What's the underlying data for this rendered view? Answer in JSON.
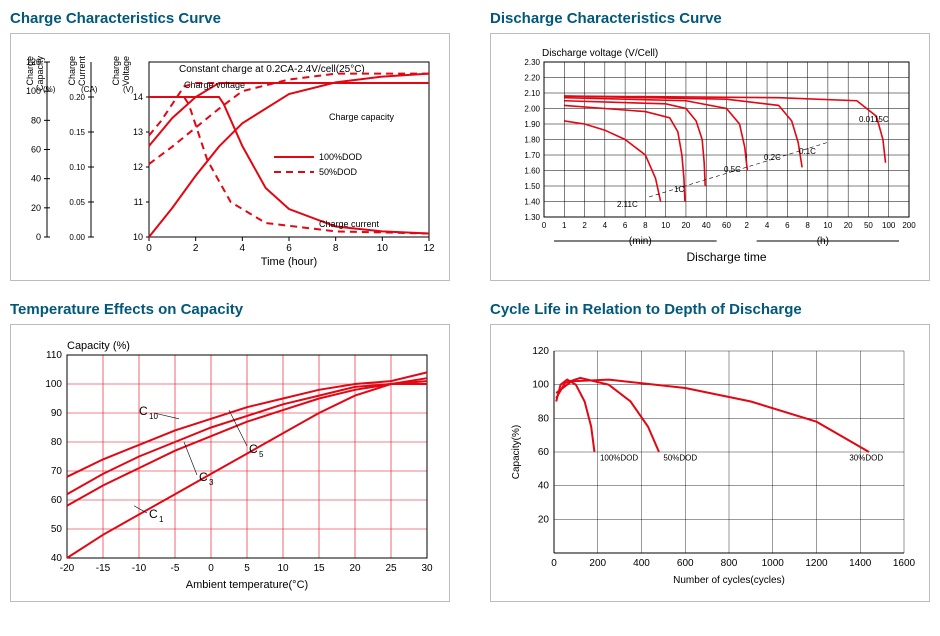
{
  "colors": {
    "title": "#00587a",
    "border": "#bcbcbc",
    "axis": "#000000",
    "grid_red": "#e30613",
    "grid_black": "#000000",
    "series_red": "#e30613",
    "text": "#000000"
  },
  "chart1": {
    "title": "Charge Characteristics Curve",
    "subtitle": "Constant charge at 0.2CA-2.4V/cell(25°C)",
    "x_label": "Time (hour)",
    "x_ticks": [
      0,
      2,
      4,
      6,
      8,
      10,
      12
    ],
    "xlim": [
      0,
      12
    ],
    "y1": {
      "label": "Charge Capacity (%)",
      "ticks": [
        0,
        20,
        40,
        60,
        80,
        100,
        120
      ],
      "lim": [
        0,
        120
      ]
    },
    "y2": {
      "label": "Charge Current (CA)",
      "ticks": [
        0,
        0.05,
        0.1,
        0.15,
        0.2
      ],
      "lim": [
        0,
        0.25
      ]
    },
    "y3": {
      "label": "Charge Voltage (V)",
      "ticks": [
        10,
        11,
        12,
        13,
        14
      ],
      "lim": [
        10,
        15
      ]
    },
    "legend": [
      {
        "label": "100%DOD",
        "dash": "none"
      },
      {
        "label": "50%DOD",
        "dash": "8 5"
      }
    ],
    "annotations": [
      "Charge voltage",
      "Charge capacity",
      "Charge current"
    ],
    "curves": {
      "voltage_100": [
        [
          0,
          12.6
        ],
        [
          0.5,
          13.0
        ],
        [
          1,
          13.4
        ],
        [
          2,
          14.0
        ],
        [
          3,
          14.4
        ],
        [
          4,
          14.4
        ],
        [
          12,
          14.4
        ]
      ],
      "voltage_50": [
        [
          0,
          12.9
        ],
        [
          0.5,
          13.3
        ],
        [
          1,
          13.8
        ],
        [
          1.5,
          14.3
        ],
        [
          2,
          14.4
        ],
        [
          12,
          14.4
        ]
      ],
      "capacity_100": [
        [
          0,
          0
        ],
        [
          1,
          20
        ],
        [
          2,
          42
        ],
        [
          3,
          62
        ],
        [
          4,
          78
        ],
        [
          6,
          98
        ],
        [
          8,
          106
        ],
        [
          10,
          110
        ],
        [
          12,
          112
        ]
      ],
      "capacity_50": [
        [
          0,
          50
        ],
        [
          1,
          62
        ],
        [
          2,
          75
        ],
        [
          3,
          88
        ],
        [
          4,
          100
        ],
        [
          6,
          108
        ],
        [
          8,
          112
        ],
        [
          12,
          112
        ]
      ],
      "current_100": [
        [
          0,
          0.2
        ],
        [
          2,
          0.2
        ],
        [
          3,
          0.2
        ],
        [
          3.2,
          0.19
        ],
        [
          4,
          0.13
        ],
        [
          5,
          0.07
        ],
        [
          6,
          0.04
        ],
        [
          8,
          0.015
        ],
        [
          10,
          0.008
        ],
        [
          12,
          0.005
        ]
      ],
      "current_50": [
        [
          0,
          0.2
        ],
        [
          1,
          0.2
        ],
        [
          1.5,
          0.2
        ],
        [
          1.7,
          0.19
        ],
        [
          2.5,
          0.11
        ],
        [
          3.5,
          0.05
        ],
        [
          5,
          0.02
        ],
        [
          8,
          0.008
        ],
        [
          12,
          0.005
        ]
      ]
    }
  },
  "chart2": {
    "title": "Discharge Characteristics Curve",
    "y_label": "Discharge voltage (V/Cell)",
    "x_label": "Discharge time",
    "x_unit_left": "(min)",
    "x_unit_right": "(h)",
    "y_ticks": [
      1.3,
      1.4,
      1.5,
      1.6,
      1.7,
      1.8,
      1.9,
      2.0,
      2.1,
      2.2,
      2.3
    ],
    "ylim": [
      1.3,
      2.3
    ],
    "x_ticks_min": [
      0,
      1,
      2,
      4,
      6,
      8,
      10,
      20,
      40,
      60
    ],
    "x_ticks_h": [
      2,
      4,
      6,
      8,
      10,
      20,
      50,
      100,
      200
    ],
    "series": [
      {
        "label": "2.11C",
        "data": [
          [
            1,
            1.92
          ],
          [
            2,
            1.9
          ],
          [
            4,
            1.86
          ],
          [
            6,
            1.8
          ],
          [
            8,
            1.7
          ],
          [
            9,
            1.55
          ],
          [
            9.5,
            1.4
          ]
        ]
      },
      {
        "label": "1C",
        "data": [
          [
            1,
            2.02
          ],
          [
            4,
            2.0
          ],
          [
            8,
            1.98
          ],
          [
            12,
            1.94
          ],
          [
            16,
            1.85
          ],
          [
            18,
            1.7
          ],
          [
            19,
            1.55
          ],
          [
            19.5,
            1.4
          ]
        ]
      },
      {
        "label": "0.5C",
        "data": [
          [
            1,
            2.05
          ],
          [
            10,
            2.03
          ],
          [
            20,
            2.0
          ],
          [
            30,
            1.92
          ],
          [
            36,
            1.8
          ],
          [
            38,
            1.65
          ],
          [
            39,
            1.5
          ]
        ]
      },
      {
        "label": "0.2C",
        "data": [
          [
            1,
            2.07
          ],
          [
            20,
            2.05
          ],
          [
            60,
            2.0
          ],
          [
            70,
            1.9
          ],
          [
            74,
            1.75
          ],
          [
            76,
            1.6
          ]
        ]
      },
      {
        "label": "0.1C",
        "data": [
          [
            1,
            2.08
          ],
          [
            60,
            2.06
          ],
          [
            100,
            2.02
          ],
          [
            110,
            1.92
          ],
          [
            115,
            1.78
          ],
          [
            118,
            1.62
          ]
        ]
      },
      {
        "label": "0.0115C",
        "data": [
          [
            1,
            2.08
          ],
          [
            100,
            2.07
          ],
          [
            160,
            2.05
          ],
          [
            175,
            1.95
          ],
          [
            180,
            1.8
          ],
          [
            182,
            1.65
          ]
        ]
      }
    ]
  },
  "chart3": {
    "title": "Temperature Effects on Capacity",
    "y_label": "Capacity (%)",
    "x_label": "Ambient temperature(°C)",
    "x_ticks": [
      -20,
      -15,
      -10,
      -5,
      0,
      5,
      10,
      15,
      20,
      25,
      30
    ],
    "xlim": [
      -20,
      30
    ],
    "y_ticks": [
      40,
      50,
      60,
      70,
      80,
      90,
      100,
      110
    ],
    "ylim": [
      40,
      110
    ],
    "series": [
      {
        "label": "C₁₀",
        "sub": "10",
        "data": [
          [
            -20,
            68
          ],
          [
            -15,
            74
          ],
          [
            -10,
            79
          ],
          [
            -5,
            84
          ],
          [
            0,
            88
          ],
          [
            5,
            92
          ],
          [
            10,
            95
          ],
          [
            15,
            98
          ],
          [
            20,
            100
          ],
          [
            25,
            101
          ],
          [
            30,
            104
          ]
        ]
      },
      {
        "label": "C₅",
        "sub": "5",
        "data": [
          [
            -20,
            62
          ],
          [
            -15,
            69
          ],
          [
            -10,
            75
          ],
          [
            -5,
            80
          ],
          [
            0,
            85
          ],
          [
            5,
            89
          ],
          [
            10,
            93
          ],
          [
            15,
            96
          ],
          [
            20,
            99
          ],
          [
            25,
            100
          ],
          [
            30,
            102
          ]
        ]
      },
      {
        "label": "C₃",
        "sub": "3",
        "data": [
          [
            -20,
            58
          ],
          [
            -15,
            65
          ],
          [
            -10,
            71
          ],
          [
            -5,
            77
          ],
          [
            0,
            82
          ],
          [
            5,
            87
          ],
          [
            10,
            91
          ],
          [
            15,
            95
          ],
          [
            20,
            98
          ],
          [
            25,
            100
          ],
          [
            30,
            101
          ]
        ]
      },
      {
        "label": "C₁",
        "sub": "1",
        "data": [
          [
            -20,
            40
          ],
          [
            -15,
            48
          ],
          [
            -10,
            55
          ],
          [
            -5,
            62
          ],
          [
            0,
            69
          ],
          [
            5,
            76
          ],
          [
            10,
            83
          ],
          [
            15,
            90
          ],
          [
            20,
            96
          ],
          [
            25,
            100
          ],
          [
            30,
            100
          ]
        ]
      }
    ]
  },
  "chart4": {
    "title": "Cycle Life in Relation to Depth of Discharge",
    "y_label": "Capacity(%)",
    "x_label": "Number of cycles(cycles)",
    "x_ticks": [
      0,
      200,
      400,
      600,
      800,
      1000,
      1200,
      1400,
      1600
    ],
    "xlim": [
      0,
      1600
    ],
    "y_ticks": [
      20,
      40,
      60,
      80,
      100,
      120
    ],
    "ylim": [
      0,
      120
    ],
    "series": [
      {
        "label": "100%DOD",
        "data": [
          [
            10,
            90
          ],
          [
            30,
            100
          ],
          [
            60,
            103
          ],
          [
            100,
            100
          ],
          [
            140,
            90
          ],
          [
            170,
            75
          ],
          [
            185,
            60
          ]
        ]
      },
      {
        "label": "50%DOD",
        "data": [
          [
            10,
            92
          ],
          [
            50,
            101
          ],
          [
            120,
            104
          ],
          [
            250,
            100
          ],
          [
            350,
            90
          ],
          [
            430,
            75
          ],
          [
            480,
            60
          ]
        ]
      },
      {
        "label": "30%DOD",
        "data": [
          [
            10,
            95
          ],
          [
            80,
            102
          ],
          [
            250,
            103
          ],
          [
            600,
            98
          ],
          [
            900,
            90
          ],
          [
            1200,
            78
          ],
          [
            1440,
            60
          ]
        ]
      }
    ]
  }
}
